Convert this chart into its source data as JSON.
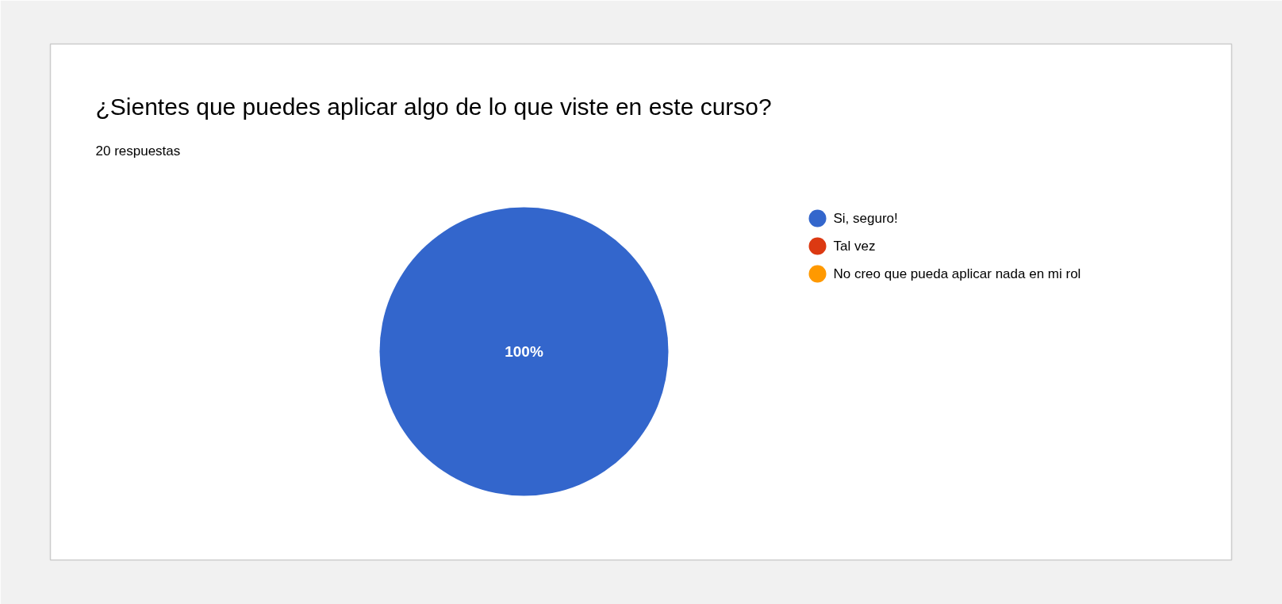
{
  "chart_data": {
    "type": "pie",
    "title": "¿Sientes que puedes aplicar algo de lo que viste en este curso?",
    "subtitle": "20 respuestas",
    "categories": [
      "Si, seguro!",
      "Tal vez",
      "No creo que pueda aplicar nada en mi rol"
    ],
    "values": [
      100,
      0,
      0
    ],
    "colors": [
      "#3366cc",
      "#dc3912",
      "#ff9900"
    ],
    "value_labels": [
      "100%",
      null,
      null
    ],
    "legend": "right"
  }
}
